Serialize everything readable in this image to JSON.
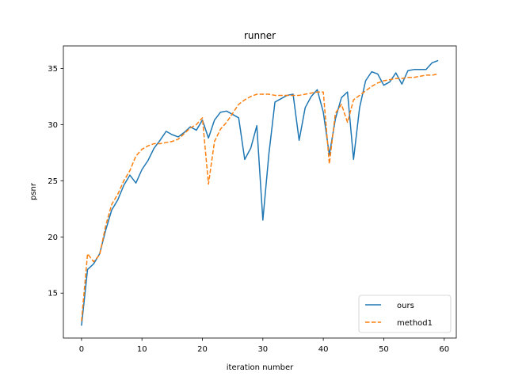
{
  "chart_data": {
    "type": "line",
    "title": "runner",
    "xlabel": "iteration number",
    "ylabel": "psnr",
    "xlim": [
      -3,
      62
    ],
    "ylim": [
      11,
      37
    ],
    "xticks": [
      0,
      10,
      20,
      30,
      40,
      50,
      60
    ],
    "yticks": [
      15,
      20,
      25,
      30,
      35
    ],
    "grid": false,
    "legend_position": "lower-right",
    "x": [
      0,
      1,
      2,
      3,
      4,
      5,
      6,
      7,
      8,
      9,
      10,
      11,
      12,
      13,
      14,
      15,
      16,
      17,
      18,
      19,
      20,
      21,
      22,
      23,
      24,
      25,
      26,
      27,
      28,
      29,
      30,
      31,
      32,
      33,
      34,
      35,
      36,
      37,
      38,
      39,
      40,
      41,
      42,
      43,
      44,
      45,
      46,
      47,
      48,
      49,
      50,
      51,
      52,
      53,
      54,
      55,
      56,
      57,
      58,
      59
    ],
    "series": [
      {
        "name": "ours",
        "color": "#1f77b4",
        "style": "solid",
        "values": [
          12.1,
          17.1,
          17.6,
          18.5,
          20.6,
          22.4,
          23.3,
          24.6,
          25.5,
          24.8,
          26.0,
          26.8,
          27.9,
          28.6,
          29.4,
          29.1,
          28.9,
          29.3,
          29.8,
          29.5,
          30.4,
          28.8,
          30.4,
          31.1,
          31.2,
          30.9,
          30.6,
          26.9,
          27.9,
          29.9,
          21.5,
          27.4,
          32.0,
          32.3,
          32.6,
          32.7,
          28.6,
          31.5,
          32.5,
          33.1,
          31.1,
          27.3,
          30.5,
          32.4,
          32.9,
          26.9,
          31.5,
          33.9,
          34.7,
          34.5,
          33.5,
          33.8,
          34.6,
          33.6,
          34.8,
          34.9,
          34.9,
          34.9,
          35.5,
          35.7
        ]
      },
      {
        "name": "method1",
        "color": "#ff7f0e",
        "style": "dashed",
        "values": [
          12.5,
          18.5,
          17.8,
          18.4,
          21.0,
          22.9,
          23.8,
          25.0,
          25.9,
          27.2,
          27.8,
          28.1,
          28.3,
          28.3,
          28.4,
          28.5,
          28.7,
          29.2,
          29.7,
          30.0,
          30.6,
          24.7,
          28.5,
          29.6,
          30.2,
          31.0,
          31.8,
          32.2,
          32.5,
          32.7,
          32.7,
          32.7,
          32.6,
          32.6,
          32.6,
          32.6,
          32.6,
          32.7,
          32.8,
          32.9,
          32.9,
          26.5,
          31.0,
          31.8,
          30.2,
          32.2,
          32.6,
          33.0,
          33.4,
          33.7,
          33.9,
          34.0,
          34.1,
          34.1,
          34.2,
          34.2,
          34.3,
          34.4,
          34.4,
          34.5
        ]
      }
    ]
  }
}
